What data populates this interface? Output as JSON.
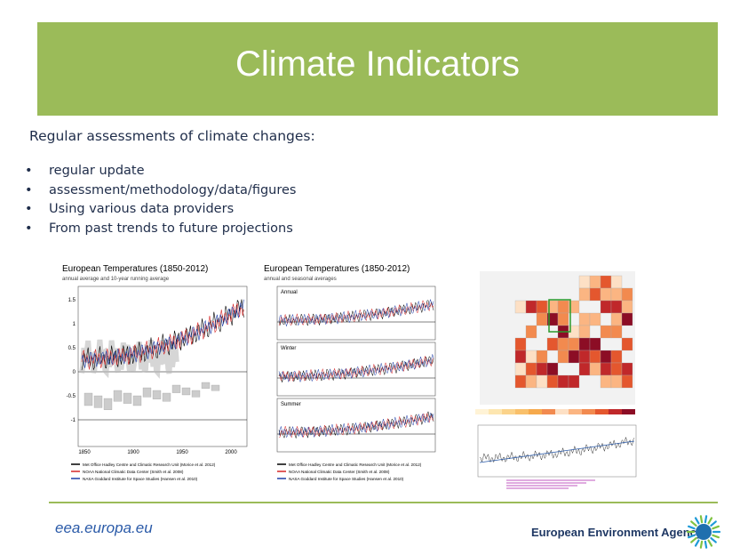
{
  "header": {
    "title": "Climate Indicators"
  },
  "body": {
    "heading": "Regular assessments of climate changes:",
    "bullets": [
      "regular update",
      "assessment/methodology/data/figures",
      "Using various data providers",
      "From past trends to future projections"
    ]
  },
  "figures": [
    {
      "title": "European Temperatures (1850-2012)",
      "subtitle": "annual average and 10-year running average",
      "yticks": [
        "1.5",
        "1",
        "0.5",
        "0",
        "-0.5",
        "-1"
      ],
      "xticks": [
        "1850",
        "1900",
        "1950",
        "2000"
      ],
      "legend": [
        "Met Office Hadley Centre and Climatic Research Unit (Morice et al. 2012)",
        "NOAA National Climatic Data Center (Smith et al. 2008)",
        "NASA Goddard Institute for Space Studies (Hansen et al. 2010)"
      ]
    },
    {
      "title": "European Temperatures (1850-2012)",
      "subtitle": "annual and seasonal averages",
      "panels": [
        "Annual",
        "Winter",
        "Summer"
      ],
      "legend": [
        "Met Office Hadley Centre and Climatic Research Unit (Morice et al. 2012)",
        "NOAA National Climatic Data Center (Smith et al. 2008)",
        "NASA Goddard Institute for Space Studies (Hansen et al. 2010)"
      ]
    }
  ],
  "footer": {
    "url": "eea.europa.eu",
    "agency": "European Environment Agency"
  }
}
